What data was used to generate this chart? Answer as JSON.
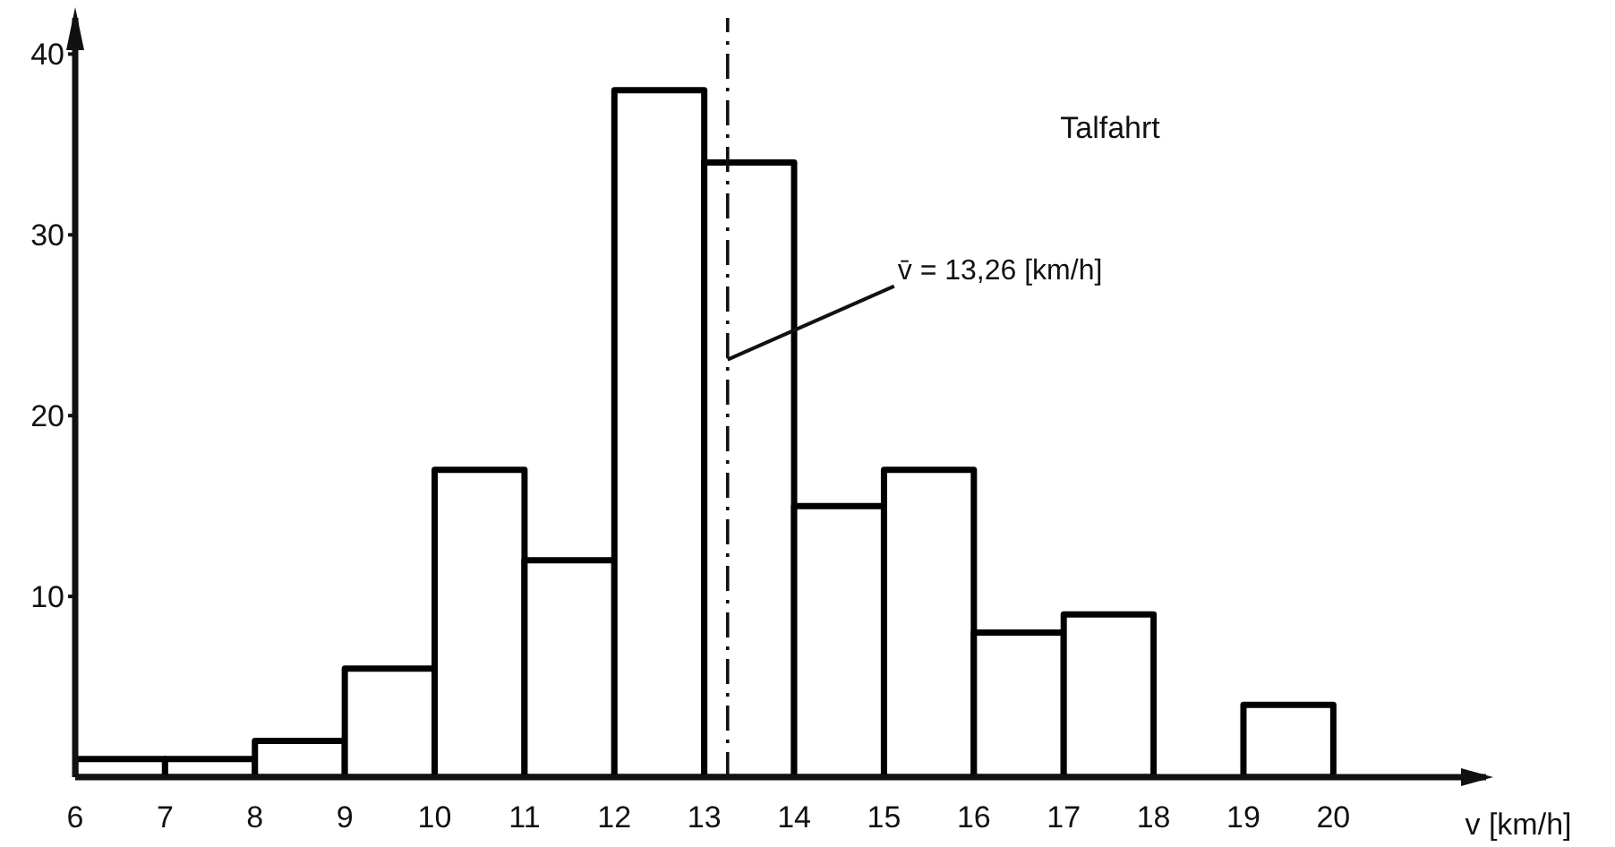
{
  "chart_data": {
    "type": "histogram",
    "title": "Talfahrt",
    "xlabel": "v [km/h]",
    "bins": [
      6,
      7,
      8,
      9,
      10,
      11,
      12,
      13,
      14,
      15,
      16,
      17,
      18,
      19,
      20
    ],
    "values": [
      1,
      1,
      2,
      6,
      17,
      12,
      38,
      34,
      15,
      17,
      8,
      9,
      0,
      4
    ],
    "color": "#000000",
    "xlim": [
      6,
      21.7
    ],
    "xticks": [
      6,
      7,
      8,
      9,
      10,
      11,
      12,
      13,
      14,
      15,
      16,
      17,
      18,
      19,
      20
    ],
    "ylim": [
      0,
      42
    ],
    "yticks": [
      10,
      20,
      30,
      40
    ],
    "ref_lines": [
      {
        "axis": "x",
        "value": 13.26,
        "label": "v̄ = 13,26 [km/h]",
        "line_style": "dashed"
      }
    ],
    "grid": false,
    "legend": false
  }
}
